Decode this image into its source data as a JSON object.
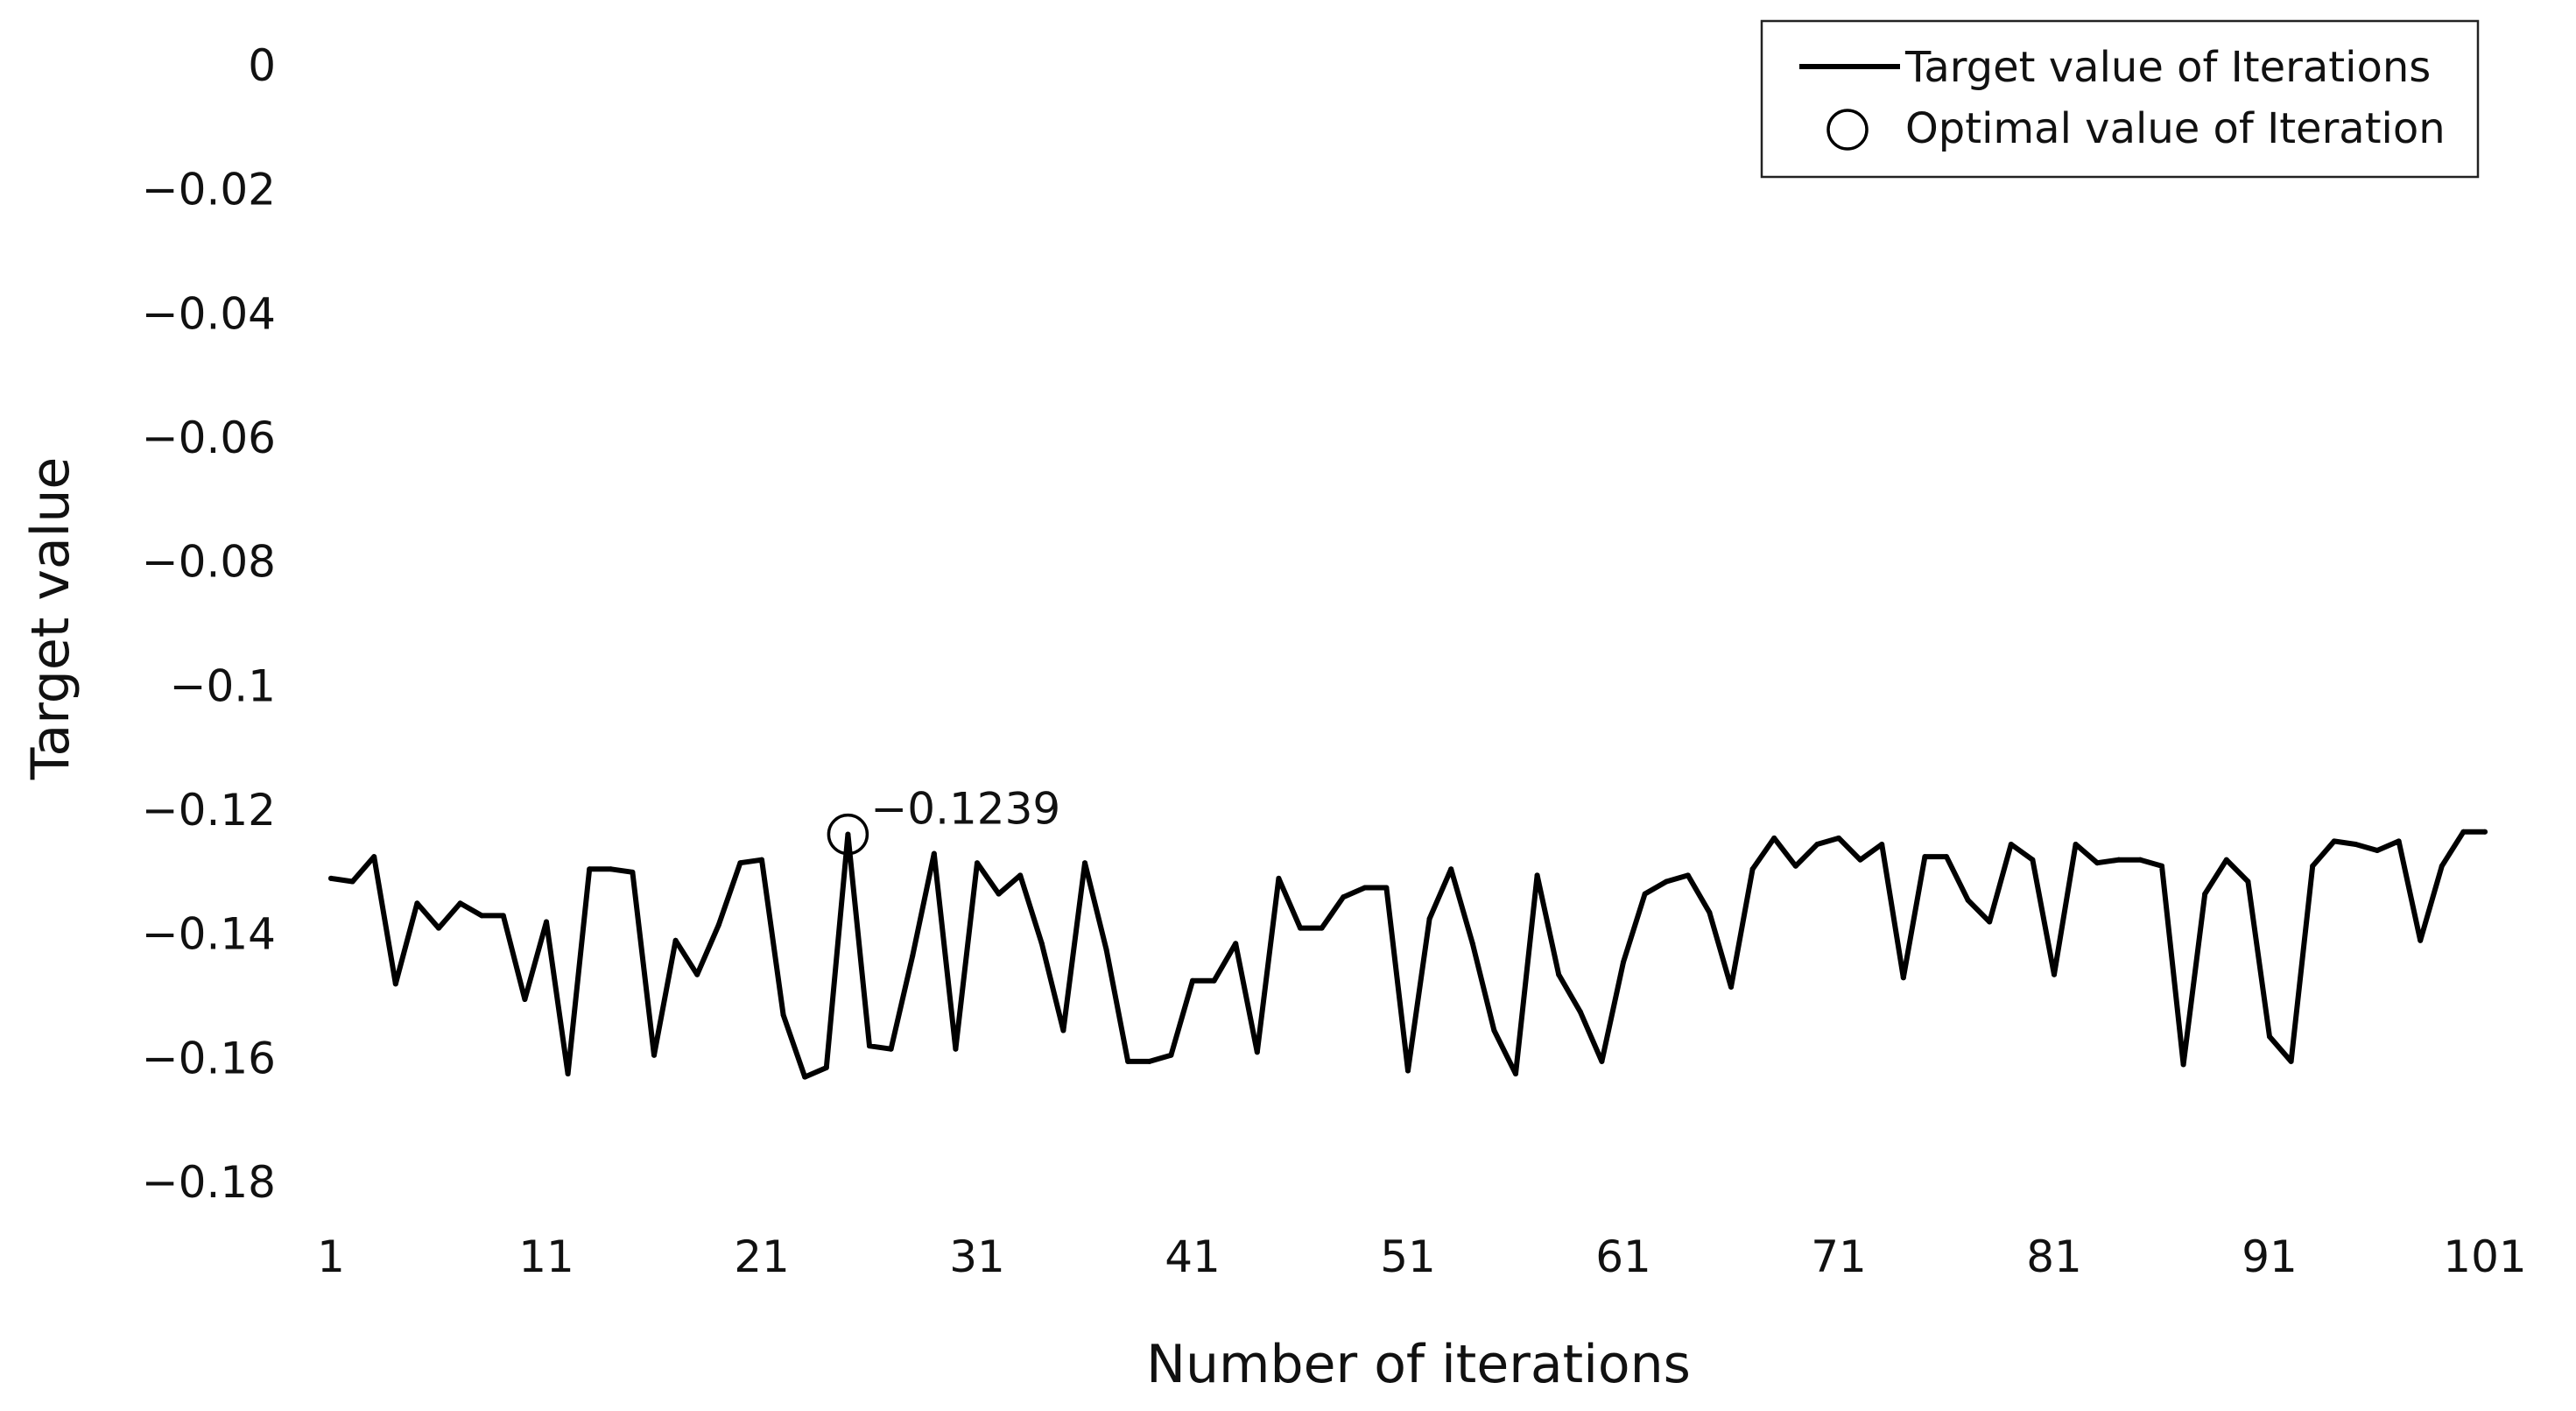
{
  "chart_data": {
    "type": "line",
    "title": "",
    "xlabel": "Number of iterations",
    "ylabel": "Target value",
    "xlim": [
      1,
      101
    ],
    "ylim": [
      -0.18,
      0
    ],
    "xticks": [
      1,
      11,
      21,
      31,
      41,
      51,
      61,
      71,
      81,
      91,
      101
    ],
    "xtick_labels": [
      "1",
      "11",
      "21",
      "31",
      "41",
      "51",
      "61",
      "71",
      "81",
      "91",
      "101"
    ],
    "yticks": [
      0,
      -0.02,
      -0.04,
      -0.06,
      -0.08,
      -0.1,
      -0.12,
      -0.14,
      -0.16,
      -0.18
    ],
    "ytick_labels": [
      "0",
      "−0.02",
      "−0.04",
      "−0.06",
      "−0.08",
      "−0.1",
      "−0.12",
      "−0.14",
      "−0.16",
      "−0.18"
    ],
    "grid": false,
    "legend_position": "top-right",
    "legend": [
      {
        "label": "Target value of Iterations",
        "symbol": "line"
      },
      {
        "label": "Optimal value of Iteration",
        "symbol": "circle"
      }
    ],
    "series": [
      {
        "name": "Target value of Iterations",
        "color": "#000000",
        "x": [
          1,
          2,
          3,
          4,
          5,
          6,
          7,
          8,
          9,
          10,
          11,
          12,
          13,
          14,
          15,
          16,
          17,
          18,
          19,
          20,
          21,
          22,
          23,
          24,
          25,
          26,
          27,
          28,
          29,
          30,
          31,
          32,
          33,
          34,
          35,
          36,
          37,
          38,
          39,
          40,
          41,
          42,
          43,
          44,
          45,
          46,
          47,
          48,
          49,
          50,
          51,
          52,
          53,
          54,
          55,
          56,
          57,
          58,
          59,
          60,
          61,
          62,
          63,
          64,
          65,
          66,
          67,
          68,
          69,
          70,
          71,
          72,
          73,
          74,
          75,
          76,
          77,
          78,
          79,
          80,
          81,
          82,
          83,
          84,
          85,
          86,
          87,
          88,
          89,
          90,
          91,
          92,
          93,
          94,
          95,
          96,
          97,
          98,
          99,
          100,
          101
        ],
        "y": [
          -0.131,
          -0.1315,
          -0.1275,
          -0.148,
          -0.135,
          -0.139,
          -0.135,
          -0.137,
          -0.137,
          -0.1505,
          -0.138,
          -0.1625,
          -0.1295,
          -0.1295,
          -0.13,
          -0.1595,
          -0.141,
          -0.1465,
          -0.1385,
          -0.1285,
          -0.128,
          -0.153,
          -0.163,
          -0.1615,
          -0.1239,
          -0.158,
          -0.1585,
          -0.1435,
          -0.127,
          -0.1585,
          -0.1285,
          -0.1335,
          -0.1305,
          -0.1415,
          -0.1555,
          -0.1285,
          -0.1425,
          -0.1605,
          -0.1605,
          -0.1595,
          -0.1475,
          -0.1475,
          -0.1415,
          -0.159,
          -0.131,
          -0.139,
          -0.139,
          -0.134,
          -0.1325,
          -0.1325,
          -0.162,
          -0.1375,
          -0.1295,
          -0.1415,
          -0.1555,
          -0.1625,
          -0.1305,
          -0.1465,
          -0.1525,
          -0.1605,
          -0.1445,
          -0.1335,
          -0.1315,
          -0.1305,
          -0.1365,
          -0.1485,
          -0.1295,
          -0.1245,
          -0.129,
          -0.1255,
          -0.1245,
          -0.128,
          -0.1255,
          -0.147,
          -0.1275,
          -0.1275,
          -0.1345,
          -0.138,
          -0.1255,
          -0.128,
          -0.1465,
          -0.1255,
          -0.1285,
          -0.128,
          -0.128,
          -0.129,
          -0.161,
          -0.1335,
          -0.128,
          -0.1315,
          -0.1565,
          -0.1605,
          -0.129,
          -0.125,
          -0.1255,
          -0.1265,
          -0.125,
          -0.141,
          -0.129,
          -0.1235,
          -0.1235
        ]
      }
    ],
    "annotations": [
      {
        "text": "−0.1239",
        "x": 25,
        "y": -0.1239,
        "marker": "circle"
      }
    ]
  }
}
